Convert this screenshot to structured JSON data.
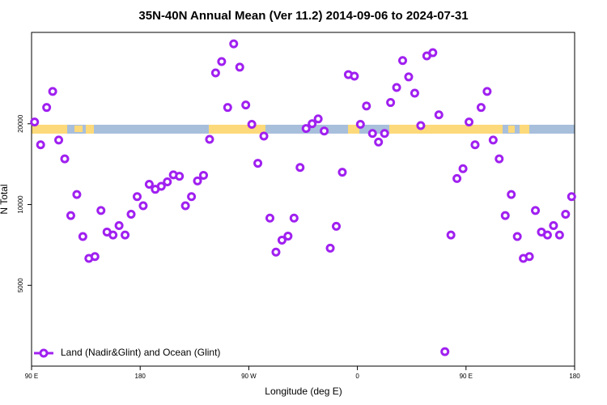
{
  "chart_data": {
    "type": "scatter",
    "title": "35N-40N Annual Mean (Ver 11.2)   2014-09-06 to 2024-07-31",
    "x_label": "Longitude (deg E)",
    "y_label": "N Total",
    "log_y": true,
    "xlim": [
      90,
      540
    ],
    "xticks": [
      {
        "value": 90,
        "label": "90 E"
      },
      {
        "value": 180,
        "label": "180"
      },
      {
        "value": 270,
        "label": "90 W"
      },
      {
        "value": 360,
        "label": "0"
      },
      {
        "value": 450,
        "label": "90 E"
      },
      {
        "value": 540,
        "label": "180"
      }
    ],
    "ylim": [
      2500,
      43800
    ],
    "yticks": [
      5000,
      10000,
      20000
    ],
    "legend": "bottom-left",
    "series": [
      {
        "name": "Land (Nadir&Glint) and Ocean (Glint)",
        "color": "#a020f0",
        "x": [
          92.5,
          97.5,
          102.5,
          107.5,
          112.5,
          117.5,
          122.5,
          127.5,
          132.5,
          137.5,
          142.5,
          147.5,
          152.5,
          157.5,
          162.5,
          167.5,
          172.5,
          177.5,
          182.5,
          187.5,
          192.5,
          197.5,
          202.5,
          207.5,
          212.5,
          217.5,
          222.5,
          227.5,
          232.5,
          237.5,
          242.5,
          247.5,
          252.5,
          257.5,
          262.5,
          267.5,
          272.5,
          277.5,
          282.5,
          287.5,
          292.5,
          297.5,
          302.5,
          307.5,
          312.5,
          317.5,
          322.5,
          327.5,
          332.5,
          337.5,
          342.5,
          347.5,
          352.5,
          357.5,
          362.5,
          367.5,
          372.5,
          377.5,
          382.5,
          387.5,
          392.5,
          397.5,
          402.5,
          407.5,
          412.5,
          417.5,
          422.5,
          427.5,
          432.5,
          437.5,
          442.5,
          447.5,
          452.5,
          457.5,
          462.5,
          467.5,
          472.5,
          477.5,
          482.5,
          487.5,
          492.5,
          497.5,
          502.5,
          507.5,
          512.5,
          517.5,
          522.5,
          527.5,
          532.5,
          537.5
        ],
        "values": [
          20300,
          16700,
          23000,
          26400,
          17400,
          14800,
          9100,
          10900,
          7600,
          6300,
          6400,
          9500,
          7900,
          7700,
          8350,
          7700,
          9200,
          10700,
          9900,
          11900,
          11400,
          11700,
          12150,
          12900,
          12750,
          9900,
          10700,
          12250,
          12850,
          17500,
          30950,
          34100,
          23000,
          39700,
          32500,
          23500,
          19900,
          14250,
          18000,
          8900,
          6650,
          7370,
          7630,
          8900,
          13750,
          19200,
          20000,
          20850,
          18800,
          6880,
          8300,
          13200,
          30500,
          30100,
          19900,
          23300,
          18400,
          17100,
          18400,
          24000,
          27300,
          34400,
          29900,
          26000,
          19700,
          35800,
          36800,
          21600,
          2830,
          7700,
          12500,
          13600,
          20300,
          16700,
          23000,
          26400,
          17400,
          14800,
          9100,
          10900,
          7600,
          6300,
          6400,
          9500,
          7900,
          7700,
          8350,
          7700,
          9200,
          10700
        ]
      }
    ]
  }
}
